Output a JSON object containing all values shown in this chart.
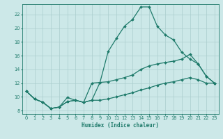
{
  "background_color": "#cce8e8",
  "grid_color": "#aacece",
  "line_color": "#1e7a6a",
  "xlabel": "Humidex (Indice chaleur)",
  "xlim": [
    -0.5,
    23.5
  ],
  "ylim": [
    7.5,
    23.5
  ],
  "xticks": [
    0,
    1,
    2,
    3,
    4,
    5,
    6,
    7,
    8,
    9,
    10,
    11,
    12,
    13,
    14,
    15,
    16,
    17,
    18,
    19,
    20,
    21,
    22,
    23
  ],
  "yticks": [
    8,
    10,
    12,
    14,
    16,
    18,
    20,
    22
  ],
  "line1_x": [
    0,
    1,
    2,
    3,
    4,
    5,
    6,
    7,
    8,
    9,
    10,
    11,
    12,
    13,
    14,
    15,
    16,
    17,
    18,
    19,
    20,
    21,
    22,
    23
  ],
  "line1_y": [
    10.8,
    9.7,
    9.2,
    8.3,
    8.5,
    9.9,
    9.5,
    9.2,
    9.5,
    12.1,
    16.6,
    18.5,
    20.3,
    21.3,
    23.1,
    23.1,
    20.3,
    19.0,
    18.3,
    16.5,
    15.5,
    14.8,
    13.0,
    12.0
  ],
  "line2_x": [
    0,
    1,
    2,
    3,
    4,
    5,
    6,
    7,
    8,
    9,
    10,
    11,
    12,
    13,
    14,
    15,
    16,
    17,
    18,
    19,
    20,
    21,
    22,
    23
  ],
  "line2_y": [
    10.8,
    9.7,
    9.2,
    8.3,
    8.5,
    9.3,
    9.5,
    9.2,
    12.0,
    12.1,
    12.2,
    12.5,
    12.8,
    13.2,
    14.0,
    14.5,
    14.8,
    15.0,
    15.2,
    15.5,
    16.2,
    14.8,
    13.0,
    12.0
  ],
  "line3_x": [
    0,
    1,
    2,
    3,
    4,
    5,
    6,
    7,
    8,
    9,
    10,
    11,
    12,
    13,
    14,
    15,
    16,
    17,
    18,
    19,
    20,
    21,
    22,
    23
  ],
  "line3_y": [
    10.8,
    9.7,
    9.2,
    8.3,
    8.5,
    9.3,
    9.5,
    9.2,
    9.5,
    9.5,
    9.7,
    10.0,
    10.3,
    10.6,
    11.0,
    11.3,
    11.7,
    12.0,
    12.2,
    12.5,
    12.8,
    12.5,
    12.0,
    12.0
  ]
}
